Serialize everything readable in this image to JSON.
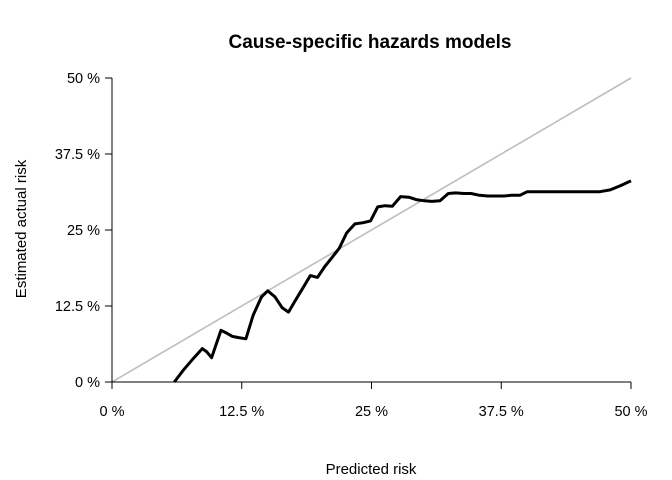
{
  "chart_data": {
    "type": "line",
    "title": "Cause-specific hazards models",
    "xlabel": "Predicted risk",
    "ylabel": "Estimated actual risk",
    "xlim": [
      0,
      50
    ],
    "ylim": [
      0,
      50
    ],
    "x_ticks": [
      {
        "value": 0,
        "label": "0 %"
      },
      {
        "value": 12.5,
        "label": "12.5 %"
      },
      {
        "value": 25,
        "label": "25 %"
      },
      {
        "value": 37.5,
        "label": "37.5 %"
      },
      {
        "value": 50,
        "label": "50 %"
      }
    ],
    "y_ticks": [
      {
        "value": 0,
        "label": "0 %"
      },
      {
        "value": 12.5,
        "label": "12.5 %"
      },
      {
        "value": 25,
        "label": "25 %"
      },
      {
        "value": 37.5,
        "label": "37.5 %"
      },
      {
        "value": 50,
        "label": "50 %"
      }
    ],
    "grid": false,
    "series": [
      {
        "role": "reference-diagonal",
        "color": "#bebebe",
        "x": [
          0,
          50
        ],
        "y": [
          0,
          50
        ]
      },
      {
        "role": "calibration-curve",
        "color": "#000000",
        "x": [
          6.0,
          6.9,
          7.9,
          8.7,
          9.1,
          9.6,
          10.1,
          10.5,
          11.1,
          11.6,
          12.2,
          12.9,
          13.6,
          14.4,
          15.0,
          15.7,
          16.4,
          17.0,
          17.7,
          18.4,
          19.1,
          19.8,
          20.5,
          21.2,
          21.9,
          22.6,
          23.4,
          24.2,
          24.9,
          25.6,
          26.3,
          27.0,
          27.8,
          28.6,
          29.3,
          30.1,
          30.8,
          31.6,
          32.4,
          33.1,
          33.9,
          34.6,
          35.4,
          36.2,
          37.0,
          37.8,
          38.5,
          39.3,
          40.0,
          41.0,
          42.0,
          43.0,
          44.0,
          45.0,
          46.0,
          47.0,
          48.0,
          49.0,
          50.0
        ],
        "y": [
          0.0,
          2.0,
          4.0,
          5.5,
          5.0,
          4.0,
          6.5,
          8.5,
          8.0,
          7.5,
          7.3,
          7.1,
          11.0,
          14.0,
          15.0,
          14.0,
          12.2,
          11.5,
          13.5,
          15.5,
          17.5,
          17.2,
          19.0,
          20.5,
          22.0,
          24.5,
          26.0,
          26.2,
          26.5,
          28.8,
          29.0,
          28.9,
          30.5,
          30.4,
          30.0,
          29.8,
          29.7,
          29.8,
          31.0,
          31.1,
          31.0,
          31.0,
          30.7,
          30.6,
          30.6,
          30.6,
          30.7,
          30.7,
          31.3,
          31.3,
          31.3,
          31.3,
          31.3,
          31.3,
          31.3,
          31.3,
          31.6,
          32.3,
          33.1
        ]
      }
    ]
  }
}
